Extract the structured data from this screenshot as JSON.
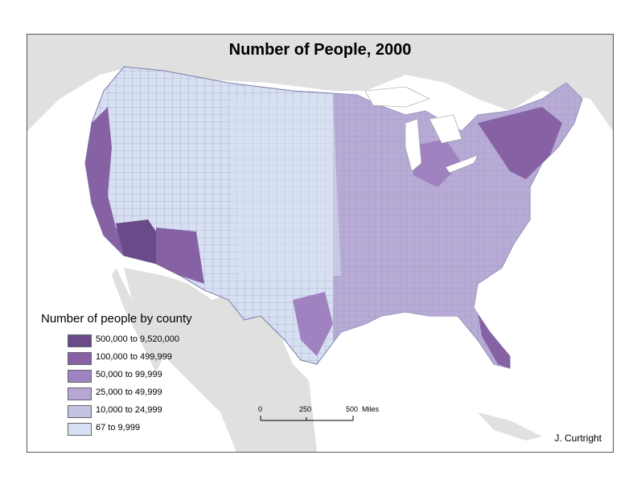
{
  "title": "Number of People, 2000",
  "legend": {
    "title": "Number of people by county",
    "classes": [
      {
        "label": "500,000 to 9,520,000",
        "color": "#6b4a8a"
      },
      {
        "label": "100,000 to 499,999",
        "color": "#8662a5"
      },
      {
        "label": "50,000 to 99,999",
        "color": "#a082c0"
      },
      {
        "label": "25,000 to 49,999",
        "color": "#b5a6d4"
      },
      {
        "label": "10,000 to 24,999",
        "color": "#c4c4e2"
      },
      {
        "label": "67 to 9,999",
        "color": "#d7e0f2"
      }
    ]
  },
  "scale_bar": {
    "labels": [
      "0",
      "250",
      "500"
    ],
    "unit": "Miles"
  },
  "credit": "J. Curtright",
  "colors": {
    "background_land": "#e0e0e0",
    "water": "#ffffff",
    "county_border": "#8f8fb5"
  }
}
